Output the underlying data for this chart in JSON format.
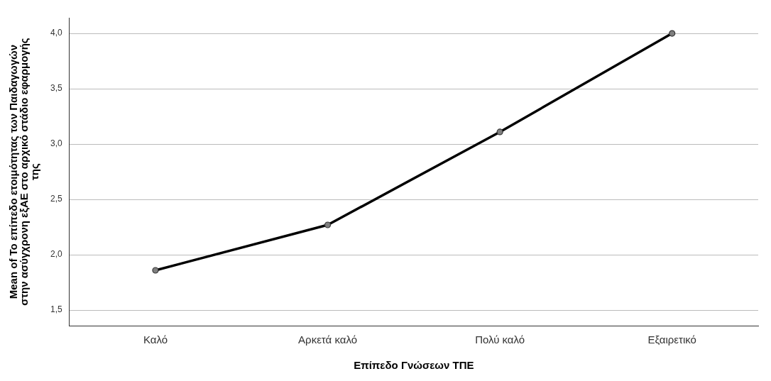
{
  "chart_data": {
    "type": "line",
    "xlabel": "Επίπεδο Γνώσεων ΤΠΕ",
    "ylabel": "Mean of Το επίπεδο ετοιμότητας των Παιδαγωγών στην ασύγχρονη εξΑΕ στο αρχικό στάδιο εφαρμογής της",
    "categories": [
      "Καλό",
      "Αρκετά καλό",
      "Πολύ καλό",
      "Εξαιρετικό"
    ],
    "series": [
      {
        "color": "#000000",
        "values": [
          1.86,
          2.27,
          3.11,
          4.0
        ]
      }
    ],
    "ylim": [
      1.36,
      4.14
    ],
    "yticks": [
      {
        "value": 1.5,
        "label": "1,5"
      },
      {
        "value": 2.0,
        "label": "2,0"
      },
      {
        "value": 2.5,
        "label": "2,5"
      },
      {
        "value": 3.0,
        "label": "3,0"
      },
      {
        "value": 3.5,
        "label": "3,5"
      },
      {
        "value": 4.0,
        "label": "4,0"
      }
    ],
    "grid": "y",
    "marker": "circle",
    "line_style": "solid",
    "legend": false
  }
}
